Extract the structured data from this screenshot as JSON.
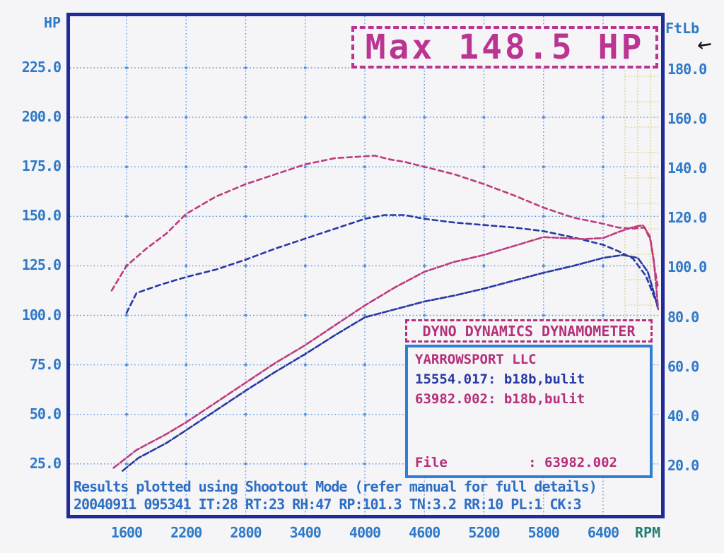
{
  "banner": {
    "text": "Max 148.5 HP"
  },
  "arrow_glyph": "←",
  "axes": {
    "left_title": "HP",
    "right_title": "FtLb",
    "bottom_unit": "RPM",
    "left_ticks": [
      "225.0",
      "200.0",
      "175.0",
      "150.0",
      "125.0",
      "100.0",
      "75.0",
      "50.0",
      "25.0"
    ],
    "right_ticks": [
      "180.0",
      "160.0",
      "140.0",
      "120.0",
      "100.0",
      "80.0",
      "60.0",
      "40.0",
      "20.0"
    ],
    "x_ticks": [
      "1600",
      "2200",
      "2800",
      "3400",
      "4000",
      "4600",
      "5200",
      "5800",
      "6400"
    ]
  },
  "legend": {
    "header": "DYNO DYNAMICS DYNAMOMETER",
    "owner": "YARROWSPORT LLC",
    "run1": "15554.017: b18b,bulit",
    "run2": "63982.002: b18b,bulit",
    "file_line": "File          : 63982.002"
  },
  "footer": {
    "line1": "Results plotted using Shootout Mode (refer manual for full details)",
    "line2": "20040911 095341 IT:28 RT:23 RH:47 RP:101.3 TN:3.2 RR:10 PL:1 CK:3"
  },
  "colors": {
    "paper": "#f5f4f7",
    "frame": "#1f2b96",
    "grid": "#5895dd",
    "tick": "#2e7ac9",
    "teal": "#237f74",
    "banner": "#bb3492",
    "legendpink": "#b43079",
    "legendblue": "#2e7fd6",
    "run1": "#2639a4",
    "run2": "#bc3c7d",
    "yellow": "#d8ca6e",
    "ink": "#15151f"
  },
  "chart_data": {
    "type": "line",
    "title": "Max 148.5 HP",
    "xlabel": "RPM",
    "ylabel_left": "HP",
    "ylabel_right": "FtLb",
    "x_ticks_rpm": [
      1600,
      2200,
      2800,
      3400,
      4000,
      4600,
      5200,
      5800,
      6400
    ],
    "left_axis_range_hp": [
      25,
      225
    ],
    "right_axis_range_ftlb": [
      20,
      180
    ],
    "grid": true,
    "legend_position": "lower-right-box",
    "max_power_zone_rpm": [
      6550,
      6900
    ],
    "series": [
      {
        "name": "15554.017: b18b,bulit — Power",
        "axis": "hp",
        "color_key": "run1",
        "dash": "9 3",
        "points": [
          [
            1560,
            21.5
          ],
          [
            1720,
            28
          ],
          [
            2000,
            35.5
          ],
          [
            2200,
            42
          ],
          [
            2500,
            52
          ],
          [
            2800,
            62
          ],
          [
            3100,
            71.5
          ],
          [
            3400,
            80.5
          ],
          [
            3700,
            90
          ],
          [
            4000,
            99
          ],
          [
            4300,
            103
          ],
          [
            4600,
            107
          ],
          [
            4900,
            110
          ],
          [
            5200,
            113.5
          ],
          [
            5500,
            117.5
          ],
          [
            5800,
            121.5
          ],
          [
            6100,
            125
          ],
          [
            6400,
            129
          ],
          [
            6600,
            130.5
          ],
          [
            6750,
            129
          ],
          [
            6850,
            122
          ],
          [
            6920,
            110
          ],
          [
            6950,
            104
          ]
        ]
      },
      {
        "name": "15554.017: b18b,bulit — Torque",
        "axis": "ftlb",
        "color_key": "run1",
        "dash": "7 5",
        "points": [
          [
            1600,
            81
          ],
          [
            1700,
            89
          ],
          [
            1950,
            92.5
          ],
          [
            2200,
            95.5
          ],
          [
            2500,
            98.5
          ],
          [
            2800,
            102.5
          ],
          [
            3100,
            107
          ],
          [
            3400,
            111
          ],
          [
            3700,
            115
          ],
          [
            4000,
            119
          ],
          [
            4200,
            120.5
          ],
          [
            4400,
            120.5
          ],
          [
            4600,
            119
          ],
          [
            4900,
            117.5
          ],
          [
            5200,
            116.5
          ],
          [
            5500,
            115.5
          ],
          [
            5800,
            114
          ],
          [
            6100,
            111.5
          ],
          [
            6400,
            108.5
          ],
          [
            6550,
            106
          ],
          [
            6700,
            103
          ],
          [
            6830,
            96
          ],
          [
            6900,
            89
          ],
          [
            6940,
            85
          ]
        ]
      },
      {
        "name": "63982.002: b18b,bulit — Power",
        "axis": "hp",
        "color_key": "run2",
        "dash": "9 3",
        "points": [
          [
            1470,
            23
          ],
          [
            1700,
            32
          ],
          [
            2000,
            40
          ],
          [
            2200,
            46
          ],
          [
            2500,
            56
          ],
          [
            2800,
            66
          ],
          [
            3100,
            76
          ],
          [
            3400,
            85
          ],
          [
            3700,
            95
          ],
          [
            4000,
            105
          ],
          [
            4300,
            114
          ],
          [
            4600,
            122
          ],
          [
            4900,
            127
          ],
          [
            5200,
            130.5
          ],
          [
            5500,
            135
          ],
          [
            5800,
            139.5
          ],
          [
            6000,
            139
          ],
          [
            6200,
            138.5
          ],
          [
            6400,
            139
          ],
          [
            6550,
            142
          ],
          [
            6700,
            144.5
          ],
          [
            6800,
            145.5
          ],
          [
            6870,
            140
          ],
          [
            6910,
            128
          ],
          [
            6940,
            112
          ],
          [
            6955,
            103
          ]
        ]
      },
      {
        "name": "63982.002: b18b,bulit — Torque",
        "axis": "ftlb",
        "color_key": "run2",
        "dash": "7 5",
        "points": [
          [
            1450,
            90
          ],
          [
            1600,
            100
          ],
          [
            1800,
            107
          ],
          [
            2000,
            113
          ],
          [
            2200,
            121
          ],
          [
            2500,
            128
          ],
          [
            2800,
            133
          ],
          [
            3100,
            137
          ],
          [
            3400,
            141
          ],
          [
            3700,
            143.5
          ],
          [
            3900,
            144
          ],
          [
            4100,
            144.5
          ],
          [
            4250,
            143
          ],
          [
            4400,
            142
          ],
          [
            4600,
            140
          ],
          [
            4900,
            137
          ],
          [
            5200,
            133
          ],
          [
            5500,
            128.5
          ],
          [
            5800,
            123.5
          ],
          [
            6100,
            119.5
          ],
          [
            6400,
            117
          ],
          [
            6550,
            115.5
          ],
          [
            6700,
            115
          ],
          [
            6820,
            115.5
          ],
          [
            6880,
            110
          ],
          [
            6920,
            99
          ],
          [
            6950,
            92
          ]
        ]
      }
    ]
  }
}
